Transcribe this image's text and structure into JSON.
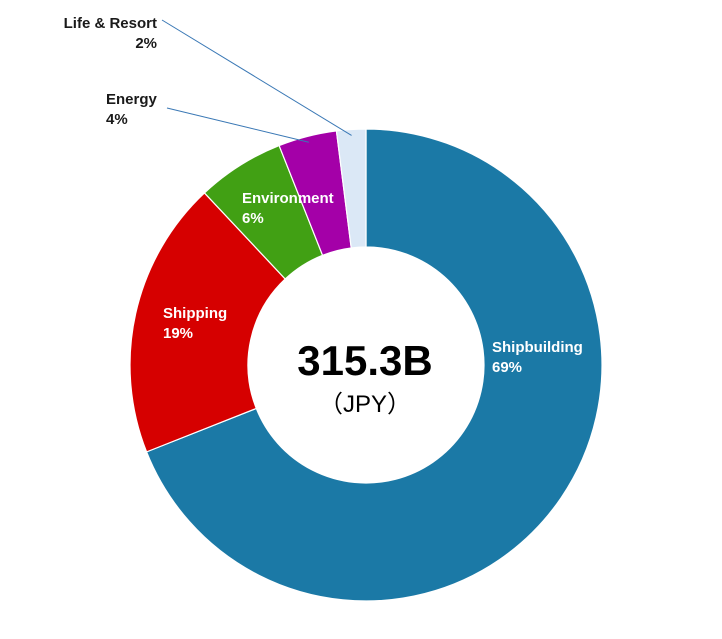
{
  "chart_data": {
    "type": "pie",
    "title": "",
    "center": {
      "total": "315.3B",
      "unit": "（JPY）"
    },
    "slices": [
      {
        "name": "Shipbuilding",
        "value": 69,
        "label": "69%",
        "color": "#1b79a6",
        "label_color": "#ffffff",
        "label_placement": "inside"
      },
      {
        "name": "Shipping",
        "value": 19,
        "label": "19%",
        "color": "#d60000",
        "label_color": "#ffffff",
        "label_placement": "inside"
      },
      {
        "name": "Environment",
        "value": 6,
        "label": "6%",
        "color": "#41a014",
        "label_color": "#ffffff",
        "label_placement": "inside"
      },
      {
        "name": "Energy",
        "value": 4,
        "label": "4%",
        "color": "#a400a8",
        "label_color": "#1a1a1a",
        "label_placement": "outside"
      },
      {
        "name": "Life & Resort",
        "value": 2,
        "label": "2%",
        "color": "#dbe8f6",
        "label_color": "#1a1a1a",
        "label_placement": "outside"
      }
    ]
  }
}
